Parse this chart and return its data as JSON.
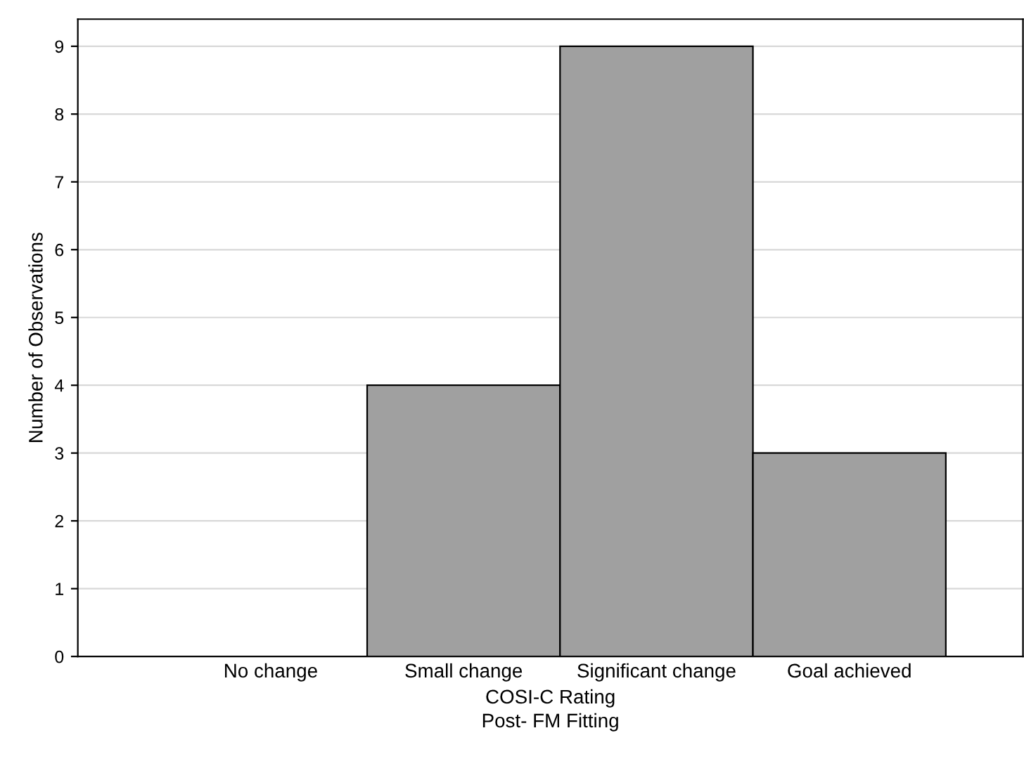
{
  "chart_data": {
    "type": "bar",
    "xlabel": "COSI-C Rating\nPost- FM Fitting",
    "ylabel": "Number of Observations",
    "categories": [
      "No change",
      "Small change",
      "Significant change",
      "Goal achieved"
    ],
    "values": [
      0,
      4,
      9,
      3
    ],
    "color": "#a0a0a0",
    "ylim": [
      0,
      9.4
    ],
    "yticks": [
      0,
      1,
      2,
      3,
      4,
      5,
      6,
      7,
      8,
      9
    ],
    "grid": "y",
    "legend": false
  }
}
